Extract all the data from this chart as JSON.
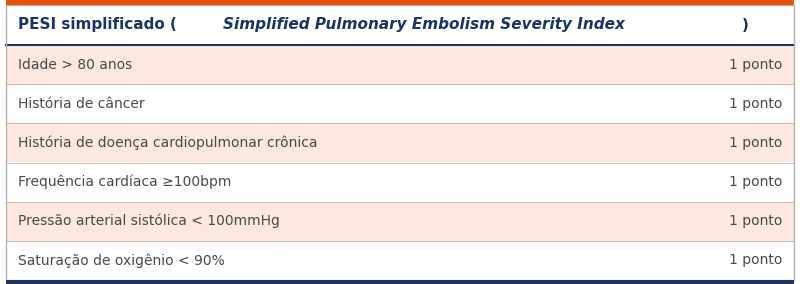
{
  "title_plain": "PESI simplificado (",
  "title_italic": "Simplified Pulmonary Embolism Severity Index",
  "title_close": ")",
  "rows": [
    [
      "Idade > 80 anos",
      "1 ponto"
    ],
    [
      "História de câncer",
      "1 ponto"
    ],
    [
      "História de doença cardiopulmonar crônica",
      "1 ponto"
    ],
    [
      "Frequência cardíaca ≥100bpm",
      "1 ponto"
    ],
    [
      "Pressão arterial sistólica < 100mmHg",
      "1 ponto"
    ],
    [
      "Saturação de oxigênio < 90%",
      "1 ponto"
    ]
  ],
  "header_bg": "#ffffff",
  "header_text_color": "#1a3560",
  "row_bg_odd": "#fce8df",
  "row_bg_even": "#ffffff",
  "row_text_color": "#4a4a4a",
  "border_top_color": "#e8520a",
  "border_bottom_color": "#1a3560",
  "separator_color": "#c8b8b0",
  "header_separator_color": "#1a3560",
  "outer_border_color": "#b0b0b0",
  "fig_bg": "#ffffff",
  "title_fontsize": 11.0,
  "row_fontsize": 10.0
}
